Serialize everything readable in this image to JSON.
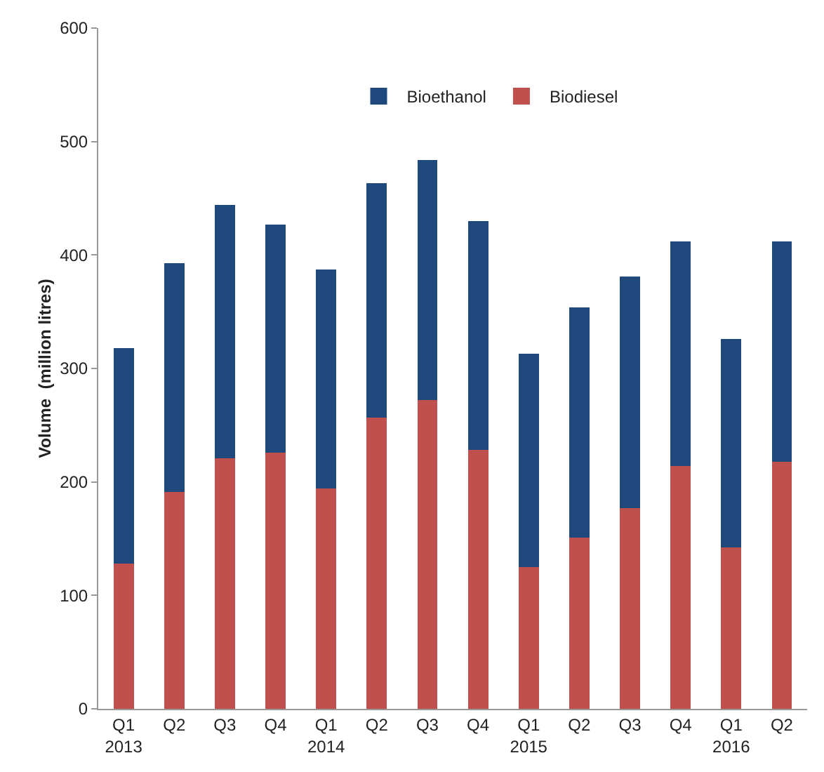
{
  "chart_data": {
    "type": "bar",
    "stacked": true,
    "ylabel": "Volume  (million litres)",
    "categories": [
      "Q1\n2013",
      "Q2",
      "Q3",
      "Q4",
      "Q1\n2014",
      "Q2",
      "Q3",
      "Q4",
      "Q1\n2015",
      "Q2",
      "Q3",
      "Q4",
      "Q1\n2016",
      "Q2"
    ],
    "series": [
      {
        "name": "Biodiesel",
        "color": "#c0504d",
        "values": [
          128,
          191,
          221,
          226,
          194,
          257,
          272,
          228,
          125,
          151,
          177,
          214,
          142,
          218
        ]
      },
      {
        "name": "Bioethanol",
        "color": "#1f497d",
        "values": [
          190,
          202,
          223,
          201,
          193,
          206,
          212,
          202,
          188,
          203,
          204,
          198,
          184,
          194
        ]
      }
    ],
    "ylim": [
      0,
      600
    ],
    "yticks": [
      0,
      100,
      200,
      300,
      400,
      500,
      600
    ],
    "grid": false,
    "legend": "top"
  }
}
